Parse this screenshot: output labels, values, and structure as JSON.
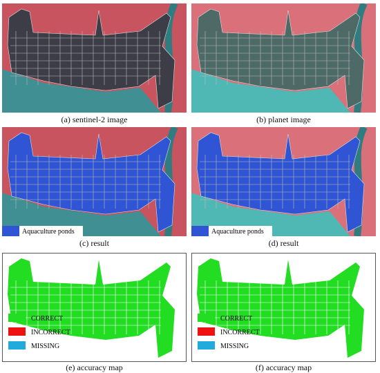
{
  "panels": [
    {
      "caption": "(a) sentinel-2 image",
      "kind": "image"
    },
    {
      "caption": "(b) planet image",
      "kind": "image"
    },
    {
      "caption": "(c) result",
      "kind": "result",
      "legend": [
        "Aquaculture ponds"
      ]
    },
    {
      "caption": "(d) result",
      "kind": "result",
      "legend": [
        "Aquaculture ponds"
      ]
    },
    {
      "caption": "(e) accuracy map",
      "kind": "accuracy",
      "legend": [
        "CORRECT",
        "INCORRECT",
        "MISSING"
      ]
    },
    {
      "caption": "(f) accuracy map",
      "kind": "accuracy",
      "legend": [
        "CORRECT",
        "INCORRECT",
        "MISSING"
      ]
    }
  ]
}
